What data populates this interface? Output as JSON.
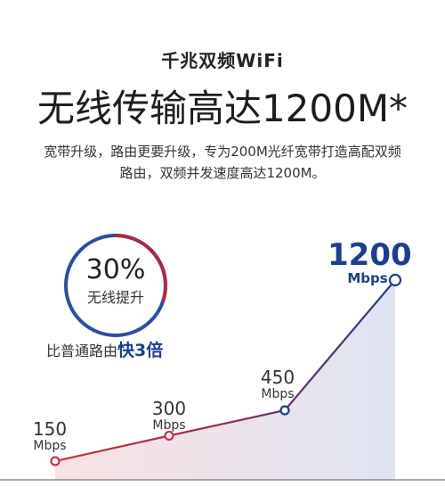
{
  "header": {
    "subtitle": "千兆双频WiFi",
    "headline": "无线传输高达1200M*"
  },
  "description": {
    "line1": "宽带升级，路由更要升级，专为200M光纤宽带打造高配双频",
    "line2": "路由，双频并发速度高达1200M。"
  },
  "badge": {
    "percent": "30%",
    "caption": "无线提升",
    "ring_fraction": 0.3,
    "colors": {
      "accent_red": "#d2343a",
      "accent_blue": "#2a4fa0",
      "ring_gray": "#e3e3e3"
    }
  },
  "comparison": {
    "prefix": "比普通路由",
    "highlight": "快3倍"
  },
  "chart_data": {
    "type": "line",
    "x": [
      "",
      "",
      "",
      ""
    ],
    "series": [
      {
        "values": [
          150,
          300,
          450,
          1200
        ]
      }
    ],
    "point_labels": [
      {
        "value": "150",
        "unit": "Mbps"
      },
      {
        "value": "300",
        "unit": "Mbps"
      },
      {
        "value": "450",
        "unit": "Mbps"
      },
      {
        "value": "1200",
        "unit": "Mbps"
      }
    ],
    "colors": {
      "start": "#d2343a",
      "end": "#1e3e8c"
    },
    "title": "",
    "xlabel": "",
    "ylabel": ""
  }
}
